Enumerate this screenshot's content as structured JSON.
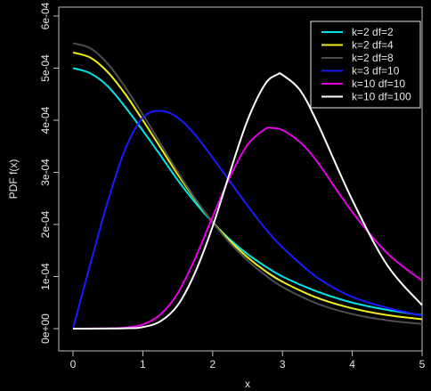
{
  "chart_data": {
    "type": "line",
    "title": "",
    "xlabel": "x",
    "ylabel": "PDF f(x)",
    "xlim": [
      0,
      5
    ],
    "ylim": [
      0,
      0.0006
    ],
    "x_ticks": [
      0,
      1,
      2,
      3,
      4,
      5
    ],
    "x_tick_labels": [
      "0",
      "1",
      "2",
      "3",
      "4",
      "5"
    ],
    "y_ticks": [
      0,
      0.0001,
      0.0002,
      0.0003,
      0.0004,
      0.0005,
      0.0006
    ],
    "y_tick_labels": [
      "0e+00",
      "1e-04",
      "2e-04",
      "3e-04",
      "4e-04",
      "5e-04",
      "6e-04"
    ],
    "grid": false,
    "legend_position": "top-right",
    "background": "#000000",
    "series": [
      {
        "name": "k=2 df=2",
        "color": "#00e5e5",
        "x": [
          0,
          0.25,
          0.5,
          0.75,
          1,
          1.25,
          1.5,
          1.75,
          2,
          2.25,
          2.5,
          2.75,
          3,
          3.5,
          4,
          4.5,
          5
        ],
        "y": [
          0.0005,
          0.00049,
          0.000465,
          0.000425,
          0.00038,
          0.000333,
          0.000285,
          0.000242,
          0.000204,
          0.000171,
          0.000143,
          0.00012,
          0.0001,
          7.1e-05,
          5e-05,
          3.6e-05,
          2.6e-05
        ]
      },
      {
        "name": "k=2 df=4",
        "color": "#f0f020",
        "x": [
          0,
          0.25,
          0.5,
          0.75,
          1,
          1.25,
          1.5,
          1.75,
          2,
          2.25,
          2.5,
          2.75,
          3,
          3.5,
          4,
          4.5,
          5
        ],
        "y": [
          0.00053,
          0.00052,
          0.000492,
          0.00045,
          0.0004,
          0.000348,
          0.000296,
          0.000248,
          0.000205,
          0.000168,
          0.000137,
          0.000111,
          9e-05,
          5.9e-05,
          3.9e-05,
          2.6e-05,
          1.8e-05
        ]
      },
      {
        "name": "k=2 df=8",
        "color": "#4d4d4d",
        "x": [
          0,
          0.25,
          0.5,
          0.75,
          1,
          1.25,
          1.5,
          1.75,
          2,
          2.25,
          2.5,
          2.75,
          3,
          3.5,
          4,
          4.5,
          5
        ],
        "y": [
          0.000548,
          0.000538,
          0.000508,
          0.000463,
          0.000411,
          0.000356,
          0.000301,
          0.00025,
          0.000204,
          0.000164,
          0.000131,
          0.000103,
          8e-05,
          4.8e-05,
          2.8e-05,
          1.6e-05,
          9e-06
        ]
      },
      {
        "name": "k=3 df=10",
        "color": "#1a1aff",
        "x": [
          0,
          0.25,
          0.5,
          0.75,
          1,
          1.25,
          1.5,
          1.75,
          2,
          2.25,
          2.5,
          2.75,
          3,
          3.5,
          4,
          4.5,
          5
        ],
        "y": [
          0,
          0.000125,
          0.000245,
          0.000345,
          0.000405,
          0.000418,
          0.000405,
          0.000372,
          0.000328,
          0.000282,
          0.000236,
          0.000193,
          0.000156,
          9.8e-05,
          6.1e-05,
          4e-05,
          2.5e-05
        ]
      },
      {
        "name": "k=10 df=10",
        "color": "#e600e6",
        "x": [
          0,
          0.5,
          0.75,
          1,
          1.25,
          1.5,
          1.75,
          2,
          2.25,
          2.5,
          2.75,
          2.85,
          3,
          3.25,
          3.5,
          4,
          4.5,
          5
        ],
        "y": [
          0,
          5e-07,
          2e-06,
          8e-06,
          2.7e-05,
          6.8e-05,
          0.000135,
          0.000215,
          0.000292,
          0.000353,
          0.000383,
          0.000385,
          0.000381,
          0.000358,
          0.00032,
          0.000224,
          0.000145,
          9.2e-05
        ]
      },
      {
        "name": "k=10 df=100",
        "color": "#ffffff",
        "x": [
          0,
          0.75,
          1,
          1.25,
          1.5,
          1.75,
          2,
          2.25,
          2.5,
          2.75,
          2.93,
          3,
          3.25,
          3.5,
          4,
          4.5,
          5
        ],
        "y": [
          0,
          6e-07,
          3e-06,
          1.4e-05,
          4.5e-05,
          0.000108,
          0.000196,
          0.000301,
          0.0004,
          0.000469,
          0.000488,
          0.000487,
          0.000458,
          0.000395,
          0.000247,
          0.000122,
          4.5e-05
        ]
      }
    ]
  }
}
